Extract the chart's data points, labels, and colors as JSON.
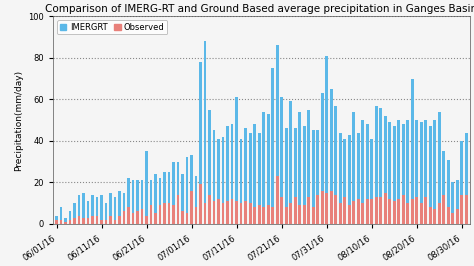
{
  "title": "Comparison of IMERG-RT and Ground Based average precipitation in Ganges Basin",
  "ylabel": "Precipitation(mm/day)",
  "ylim": [
    0,
    100
  ],
  "yticks": [
    0,
    20,
    40,
    60,
    80,
    100
  ],
  "legend_labels": [
    "IMERGRT",
    "Observed"
  ],
  "imerg_color": "#5bb8e8",
  "obs_color": "#e8807a",
  "title_fontsize": 7.5,
  "axis_fontsize": 6.5,
  "tick_fontsize": 6,
  "dates": [
    "06/01/16",
    "06/02/16",
    "06/03/16",
    "06/04/16",
    "06/05/16",
    "06/06/16",
    "06/07/16",
    "06/08/16",
    "06/09/16",
    "06/10/16",
    "06/11/16",
    "06/12/16",
    "06/13/16",
    "06/14/16",
    "06/15/16",
    "06/16/16",
    "06/17/16",
    "06/18/16",
    "06/19/16",
    "06/20/16",
    "06/21/16",
    "06/22/16",
    "06/23/16",
    "06/24/16",
    "06/25/16",
    "06/26/16",
    "06/27/16",
    "06/28/16",
    "06/29/16",
    "06/30/16",
    "07/01/16",
    "07/02/16",
    "07/03/16",
    "07/04/16",
    "07/05/16",
    "07/06/16",
    "07/07/16",
    "07/08/16",
    "07/09/16",
    "07/10/16",
    "07/11/16",
    "07/12/16",
    "07/13/16",
    "07/14/16",
    "07/15/16",
    "07/16/16",
    "07/17/16",
    "07/18/16",
    "07/19/16",
    "07/20/16",
    "07/21/16",
    "07/22/16",
    "07/23/16",
    "07/24/16",
    "07/25/16",
    "07/26/16",
    "07/27/16",
    "07/28/16",
    "07/29/16",
    "07/30/16",
    "07/31/16",
    "08/01/16",
    "08/02/16",
    "08/03/16",
    "08/04/16",
    "08/05/16",
    "08/06/16",
    "08/07/16",
    "08/08/16",
    "08/09/16",
    "08/10/16",
    "08/11/16",
    "08/12/16",
    "08/13/16",
    "08/14/16",
    "08/15/16",
    "08/16/16",
    "08/17/16",
    "08/18/16",
    "08/19/16",
    "08/20/16",
    "08/21/16",
    "08/22/16",
    "08/23/16",
    "08/24/16",
    "08/25/16",
    "08/26/16",
    "08/27/16",
    "08/28/16",
    "08/29/16",
    "08/30/16",
    "08/31/16"
  ],
  "imerg_values": [
    4,
    8,
    3,
    6,
    10,
    14,
    15,
    11,
    14,
    13,
    14,
    10,
    15,
    13,
    16,
    15,
    22,
    21,
    21,
    21,
    35,
    21,
    24,
    22,
    25,
    25,
    30,
    30,
    24,
    32,
    33,
    23,
    78,
    88,
    55,
    45,
    41,
    42,
    47,
    48,
    61,
    41,
    46,
    44,
    48,
    44,
    54,
    53,
    75,
    86,
    61,
    46,
    59,
    46,
    54,
    47,
    55,
    45,
    45,
    63,
    81,
    65,
    57,
    44,
    41,
    43,
    54,
    44,
    50,
    48,
    41,
    57,
    56,
    52,
    49,
    47,
    50,
    48,
    50,
    70,
    50,
    49,
    50,
    47,
    50,
    54,
    35,
    31,
    20,
    21,
    40,
    44
  ],
  "obs_values": [
    2,
    2,
    1,
    2,
    3,
    4,
    3,
    3,
    4,
    4,
    2,
    2,
    4,
    2,
    4,
    6,
    8,
    5,
    6,
    7,
    4,
    9,
    5,
    9,
    10,
    10,
    9,
    14,
    6,
    5,
    16,
    8,
    19,
    10,
    14,
    11,
    12,
    10,
    11,
    12,
    11,
    10,
    11,
    10,
    8,
    9,
    8,
    9,
    8,
    23,
    13,
    8,
    10,
    13,
    9,
    9,
    13,
    8,
    14,
    16,
    15,
    16,
    14,
    10,
    13,
    9,
    11,
    12,
    10,
    12,
    12,
    13,
    13,
    15,
    12,
    11,
    12,
    14,
    10,
    12,
    13,
    10,
    13,
    8,
    7,
    10,
    14,
    8,
    5,
    7,
    14,
    14
  ],
  "xtick_labels": [
    "06/01/16",
    "06/11/16",
    "06/21/16",
    "07/01/16",
    "07/11/16",
    "07/21/16",
    "07/31/16",
    "08/10/16",
    "08/20/16",
    "08/30/16"
  ],
  "xtick_positions": [
    0,
    10,
    20,
    30,
    40,
    50,
    60,
    70,
    80,
    90
  ],
  "background_color": "#f5f5f5",
  "grid_color": "#888888",
  "grid_linestyle": ":",
  "grid_linewidth": 0.8,
  "bar_width": 0.6
}
